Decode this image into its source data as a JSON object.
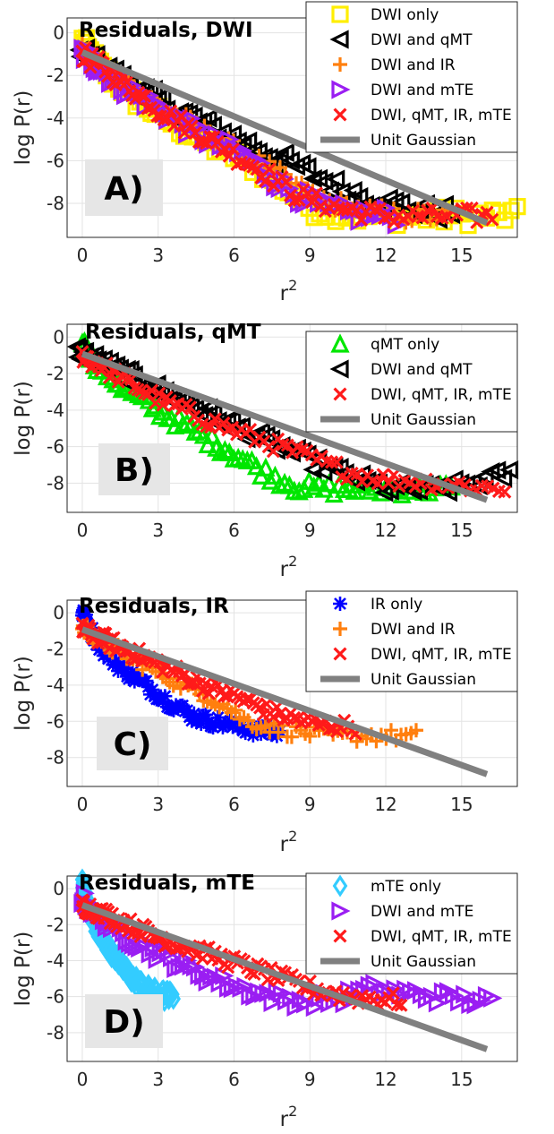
{
  "chart_data": [
    {
      "panel_label": "A)",
      "type": "scatter",
      "title": "Residuals, DWI",
      "xlabel": "r",
      "xlabel_sup": "2",
      "ylabel": "log P(r)",
      "xlim": [
        -0.6,
        17.2
      ],
      "ylim": [
        -9.6,
        0.7
      ],
      "xticks": [
        0,
        3,
        6,
        9,
        12,
        15
      ],
      "yticks": [
        0,
        -2,
        -4,
        -6,
        -8
      ],
      "grid": true,
      "legend_position": "top-right",
      "series": [
        {
          "name": "DWI only",
          "marker": "square",
          "color": "#ffee00",
          "n": 95,
          "band_amp": 0.45,
          "end_x": 17.2,
          "anchors": [
            [
              0,
              -0.4
            ],
            [
              0.7,
              -1.6
            ],
            [
              2,
              -3
            ],
            [
              3.5,
              -4.2
            ],
            [
              5,
              -5.2
            ],
            [
              6.5,
              -6
            ],
            [
              7.5,
              -6.8
            ],
            [
              9,
              -8.2
            ],
            [
              11,
              -8.6
            ],
            [
              13,
              -8.6
            ],
            [
              15.5,
              -8.6
            ],
            [
              16.7,
              -8.6
            ]
          ]
        },
        {
          "name": "DWI and qMT",
          "marker": "triangle-left",
          "color": "#000000",
          "n": 80,
          "band_amp": 0.45,
          "end_x": 14.6,
          "anchors": [
            [
              -0.1,
              -0.8
            ],
            [
              1,
              -1.8
            ],
            [
              3,
              -3.2
            ],
            [
              5,
              -4.4
            ],
            [
              6.5,
              -5.2
            ],
            [
              8.5,
              -6.3
            ],
            [
              10,
              -7.2
            ],
            [
              11.5,
              -7.8
            ],
            [
              13.5,
              -8.4
            ],
            [
              14.4,
              -8.4
            ]
          ]
        },
        {
          "name": "DWI and IR",
          "marker": "plus",
          "color": "#ff7f0e",
          "n": 80,
          "band_amp": 0.4,
          "end_x": 14.5,
          "anchors": [
            [
              0,
              -0.9
            ],
            [
              1.5,
              -2.2
            ],
            [
              3,
              -3.4
            ],
            [
              5,
              -4.8
            ],
            [
              7,
              -6.1
            ],
            [
              9,
              -7.6
            ],
            [
              10.5,
              -8.2
            ],
            [
              12.5,
              -8.6
            ],
            [
              14.2,
              -8.6
            ]
          ]
        },
        {
          "name": "DWI and mTE",
          "marker": "triangle-right",
          "color": "#9a1ef2",
          "n": 80,
          "band_amp": 0.45,
          "end_x": 12.4,
          "anchors": [
            [
              0,
              -0.9
            ],
            [
              1.5,
              -2.4
            ],
            [
              3,
              -3.5
            ],
            [
              5,
              -5
            ],
            [
              6.5,
              -5.8
            ],
            [
              8,
              -7.2
            ],
            [
              9.5,
              -8.2
            ],
            [
              10.5,
              -8.5
            ],
            [
              12.2,
              -8.6
            ]
          ]
        },
        {
          "name": "DWI, qMT, IR, mTE",
          "marker": "x",
          "color": "#ff1a1a",
          "n": 110,
          "band_amp": 0.4,
          "end_x": 16.2,
          "anchors": [
            [
              0,
              -1
            ],
            [
              1.5,
              -2.2
            ],
            [
              3,
              -3.6
            ],
            [
              5,
              -5
            ],
            [
              7,
              -6.4
            ],
            [
              8.5,
              -7.6
            ],
            [
              10,
              -8.2
            ],
            [
              12,
              -8.6
            ],
            [
              14,
              -8.6
            ],
            [
              16,
              -8.6
            ]
          ]
        },
        {
          "name": "Unit Gaussian",
          "marker": "line",
          "color": "#808080",
          "line": [
            [
              0,
              -0.92
            ],
            [
              16,
              -8.92
            ]
          ]
        }
      ]
    },
    {
      "panel_label": "B)",
      "type": "scatter",
      "title": "Residuals, qMT",
      "xlabel": "r",
      "xlabel_sup": "2",
      "ylabel": "log P(r)",
      "xlim": [
        -0.6,
        17.2
      ],
      "ylim": [
        -9.6,
        0.7
      ],
      "xticks": [
        0,
        3,
        6,
        9,
        12,
        15
      ],
      "yticks": [
        0,
        -2,
        -4,
        -6,
        -8
      ],
      "grid": true,
      "legend_position": "top-right",
      "series": [
        {
          "name": "qMT only",
          "marker": "triangle-up",
          "color": "#00e600",
          "n": 90,
          "band_amp": 0.35,
          "end_x": 14.6,
          "anchors": [
            [
              0,
              -0.3
            ],
            [
              0.5,
              -1.4
            ],
            [
              1.5,
              -2.6
            ],
            [
              3,
              -4
            ],
            [
              4.5,
              -5.2
            ],
            [
              6,
              -6.4
            ],
            [
              7.5,
              -7.6
            ],
            [
              8.5,
              -8.2
            ],
            [
              10,
              -8.3
            ],
            [
              12.5,
              -8.3
            ],
            [
              14.5,
              -8.3
            ]
          ]
        },
        {
          "name": "DWI and qMT",
          "marker": "triangle-left",
          "color": "#000000",
          "n": 95,
          "band_amp": 0.4,
          "end_x": 16.9,
          "anchors": [
            [
              -0.2,
              -0.8
            ],
            [
              1.5,
              -1.9
            ],
            [
              3,
              -2.9
            ],
            [
              5,
              -4.2
            ],
            [
              7,
              -5.5
            ],
            [
              9,
              -6.8
            ],
            [
              10.5,
              -7.6
            ],
            [
              12,
              -8.3
            ],
            [
              14,
              -8.4
            ],
            [
              16.8,
              -7.5
            ]
          ]
        },
        {
          "name": "DWI, qMT, IR, mTE",
          "marker": "x",
          "color": "#ff1a1a",
          "n": 100,
          "band_amp": 0.4,
          "end_x": 16.7,
          "anchors": [
            [
              0,
              -1
            ],
            [
              1.5,
              -2.2
            ],
            [
              3,
              -3.4
            ],
            [
              5,
              -4.6
            ],
            [
              7,
              -5.6
            ],
            [
              9,
              -6.6
            ],
            [
              10.5,
              -7.4
            ],
            [
              12,
              -7.8
            ],
            [
              14,
              -8
            ],
            [
              16.5,
              -8.3
            ]
          ]
        },
        {
          "name": "Unit Gaussian",
          "marker": "line",
          "color": "#808080",
          "line": [
            [
              0,
              -0.92
            ],
            [
              16,
              -8.92
            ]
          ]
        }
      ]
    },
    {
      "panel_label": "C)",
      "type": "scatter",
      "title": "Residuals, IR",
      "xlabel": "r",
      "xlabel_sup": "2",
      "ylabel": "log P(r)",
      "xlim": [
        -0.6,
        17.2
      ],
      "ylim": [
        -9.6,
        0.7
      ],
      "xticks": [
        0,
        3,
        6,
        9,
        12,
        15
      ],
      "yticks": [
        0,
        -2,
        -4,
        -6,
        -8
      ],
      "grid": true,
      "legend_position": "top-right",
      "series": [
        {
          "name": "IR only",
          "marker": "asterisk",
          "color": "#0000ff",
          "n": 100,
          "band_amp": 0.35,
          "end_x": 7.8,
          "anchors": [
            [
              0,
              0
            ],
            [
              0.3,
              -0.9
            ],
            [
              0.8,
              -2
            ],
            [
              1.5,
              -3
            ],
            [
              2.5,
              -4
            ],
            [
              3.5,
              -5
            ],
            [
              4.5,
              -5.8
            ],
            [
              5.5,
              -6.1
            ],
            [
              6.5,
              -6.4
            ],
            [
              7.5,
              -6.6
            ]
          ]
        },
        {
          "name": "DWI and IR",
          "marker": "plus",
          "color": "#ff7f0e",
          "n": 90,
          "band_amp": 0.35,
          "end_x": 13.2,
          "anchors": [
            [
              0,
              -0.8
            ],
            [
              1,
              -1.8
            ],
            [
              2.5,
              -2.9
            ],
            [
              4,
              -4
            ],
            [
              5.5,
              -5
            ],
            [
              6.5,
              -6
            ],
            [
              8,
              -6.5
            ],
            [
              10,
              -6.8
            ],
            [
              11,
              -6.8
            ],
            [
              13.1,
              -6.8
            ]
          ]
        },
        {
          "name": "DWI, qMT, IR, mTE",
          "marker": "x",
          "color": "#ff1a1a",
          "n": 100,
          "band_amp": 0.4,
          "end_x": 10.8,
          "anchors": [
            [
              0,
              -0.9
            ],
            [
              1.5,
              -1.9
            ],
            [
              3,
              -2.8
            ],
            [
              4.5,
              -3.8
            ],
            [
              6,
              -4.6
            ],
            [
              7.5,
              -5.5
            ],
            [
              8.5,
              -5.9
            ],
            [
              9.5,
              -6.2
            ],
            [
              10.7,
              -6.3
            ]
          ]
        },
        {
          "name": "Unit Gaussian",
          "marker": "line",
          "color": "#808080",
          "line": [
            [
              0,
              -0.92
            ],
            [
              16,
              -8.92
            ]
          ]
        }
      ]
    },
    {
      "panel_label": "D)",
      "type": "scatter",
      "title": "Residuals, mTE",
      "xlabel": "r",
      "xlabel_sup": "2",
      "ylabel": "log P(r)",
      "xlim": [
        -0.6,
        17.2
      ],
      "ylim": [
        -9.6,
        0.7
      ],
      "xticks": [
        0,
        3,
        6,
        9,
        12,
        15
      ],
      "yticks": [
        0,
        -2,
        -4,
        -6,
        -8
      ],
      "grid": true,
      "legend_position": "top-right",
      "series": [
        {
          "name": "mTE only",
          "marker": "diamond",
          "color": "#33ccff",
          "n": 110,
          "band_amp": 0.35,
          "end_x": 3.6,
          "anchors": [
            [
              0,
              0.2
            ],
            [
              0.2,
              -0.8
            ],
            [
              0.5,
              -2
            ],
            [
              1,
              -3.2
            ],
            [
              1.5,
              -4.2
            ],
            [
              2,
              -5
            ],
            [
              2.5,
              -5.6
            ],
            [
              3,
              -5.9
            ],
            [
              3.5,
              -6
            ]
          ]
        },
        {
          "name": "DWI and mTE",
          "marker": "triangle-right",
          "color": "#9a1ef2",
          "n": 100,
          "band_amp": 0.4,
          "end_x": 16.2,
          "anchors": [
            [
              0,
              -0.5
            ],
            [
              0.5,
              -1.3
            ],
            [
              1.5,
              -2.4
            ],
            [
              3,
              -3.6
            ],
            [
              4.5,
              -4.6
            ],
            [
              6,
              -5.4
            ],
            [
              7.5,
              -6
            ],
            [
              8.5,
              -6.2
            ],
            [
              10,
              -6.2
            ],
            [
              11.4,
              -5.6
            ],
            [
              16.2,
              -6.3
            ]
          ]
        },
        {
          "name": "DWI, qMT, IR, mTE",
          "marker": "x",
          "color": "#ff1a1a",
          "n": 110,
          "band_amp": 0.4,
          "end_x": 12.6,
          "anchors": [
            [
              0,
              -0.9
            ],
            [
              1.5,
              -1.8
            ],
            [
              3,
              -2.7
            ],
            [
              4.5,
              -3.4
            ],
            [
              6,
              -4.1
            ],
            [
              7.5,
              -4.8
            ],
            [
              9,
              -5.5
            ],
            [
              10.5,
              -6
            ],
            [
              12.5,
              -6.2
            ]
          ]
        },
        {
          "name": "Unit Gaussian",
          "marker": "line",
          "color": "#808080",
          "line": [
            [
              0,
              -0.92
            ],
            [
              16,
              -8.92
            ]
          ]
        }
      ]
    }
  ]
}
